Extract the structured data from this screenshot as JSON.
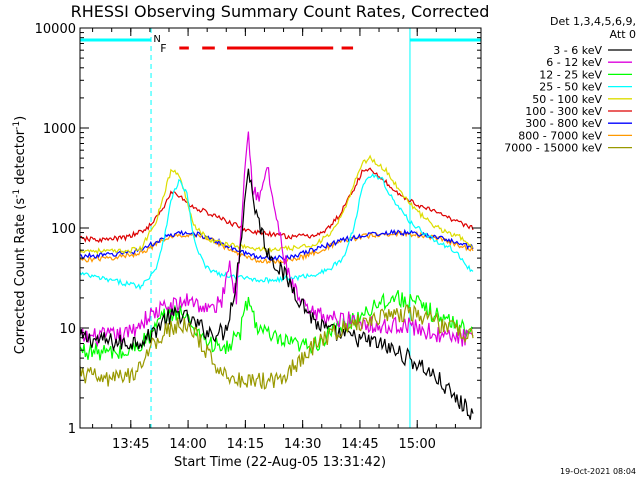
{
  "chart_data": {
    "type": "line",
    "title": "RHESSI Observing Summary Count Rates, Corrected",
    "xlabel": "Start Time (22-Aug-05 13:31:42)",
    "ylabel_main": "Corrected Count Rate (s",
    "ylabel_sup1": "-1",
    "ylabel_mid": " detector",
    "ylabel_sup2": "-1",
    "ylabel_end": ")",
    "yscale": "log",
    "ylim": [
      1,
      10000
    ],
    "xlim_minutes": [
      0,
      105
    ],
    "x_ticks": [
      {
        "label": "13:45",
        "m": 13.3
      },
      {
        "label": "14:00",
        "m": 28.3
      },
      {
        "label": "14:15",
        "m": 43.3
      },
      {
        "label": "14:30",
        "m": 58.3
      },
      {
        "label": "14:45",
        "m": 73.3
      },
      {
        "label": "15:00",
        "m": 88.3
      }
    ],
    "y_ticks": [
      {
        "label": "1",
        "v": 1
      },
      {
        "label": "10",
        "v": 10
      },
      {
        "label": "100",
        "v": 100
      },
      {
        "label": "1000",
        "v": 1000
      },
      {
        "label": "10000",
        "v": 10000
      }
    ],
    "legend_header": [
      "Det 1,3,4,5,6,9,",
      "Att 0"
    ],
    "footer_date": "19-Oct-2021 08:04",
    "annotations": {
      "N": "N",
      "F": "F"
    },
    "night_intervals": [
      [
        0,
        18.6
      ],
      [
        86.4,
        105
      ]
    ],
    "flare_segments": [
      [
        26,
        28.5
      ],
      [
        32,
        35.3
      ],
      [
        38.5,
        66.3
      ],
      [
        68.5,
        71.5
      ]
    ],
    "series": [
      {
        "name": "3 - 6 keV",
        "color": "#000000",
        "points": [
          [
            0,
            8
          ],
          [
            12,
            7
          ],
          [
            18,
            8
          ],
          [
            22,
            12
          ],
          [
            26,
            14
          ],
          [
            30,
            11
          ],
          [
            34,
            9
          ],
          [
            38,
            9
          ],
          [
            41,
            30
          ],
          [
            44,
            400
          ],
          [
            46,
            150
          ],
          [
            49,
            60
          ],
          [
            52,
            40
          ],
          [
            55,
            28
          ],
          [
            58,
            18
          ],
          [
            62,
            11
          ],
          [
            66,
            9
          ],
          [
            72,
            8
          ],
          [
            78,
            7
          ],
          [
            82,
            6
          ],
          [
            86,
            5
          ],
          [
            90,
            4
          ],
          [
            94,
            3
          ],
          [
            98,
            2
          ],
          [
            103,
            1.4
          ]
        ]
      },
      {
        "name": "6 - 12 keV",
        "color": "#dd00dd",
        "points": [
          [
            0,
            8
          ],
          [
            12,
            8.5
          ],
          [
            18,
            13
          ],
          [
            22,
            16
          ],
          [
            26,
            17
          ],
          [
            29,
            20
          ],
          [
            31,
            17
          ],
          [
            34,
            15
          ],
          [
            37,
            18
          ],
          [
            39,
            45
          ],
          [
            41,
            20
          ],
          [
            43,
            380
          ],
          [
            44,
            1000
          ],
          [
            45,
            300
          ],
          [
            47,
            180
          ],
          [
            49,
            420
          ],
          [
            51,
            150
          ],
          [
            53,
            60
          ],
          [
            55,
            30
          ],
          [
            57,
            20
          ],
          [
            60,
            14
          ],
          [
            64,
            13
          ],
          [
            68,
            12
          ],
          [
            72,
            12
          ],
          [
            76,
            11
          ],
          [
            80,
            10
          ],
          [
            84,
            11
          ],
          [
            88,
            10
          ],
          [
            92,
            9
          ],
          [
            96,
            8
          ],
          [
            100,
            8
          ],
          [
            103,
            8
          ]
        ]
      },
      {
        "name": "12 - 25 keV",
        "color": "#00ff00",
        "points": [
          [
            0,
            6
          ],
          [
            12,
            5.5
          ],
          [
            18,
            8
          ],
          [
            22,
            13
          ],
          [
            26,
            15
          ],
          [
            30,
            10
          ],
          [
            34,
            7
          ],
          [
            38,
            6
          ],
          [
            42,
            9
          ],
          [
            44,
            20
          ],
          [
            46,
            11
          ],
          [
            50,
            8
          ],
          [
            54,
            7
          ],
          [
            58,
            6.5
          ],
          [
            62,
            7
          ],
          [
            66,
            9
          ],
          [
            70,
            11
          ],
          [
            74,
            14
          ],
          [
            78,
            18
          ],
          [
            82,
            20
          ],
          [
            86,
            19
          ],
          [
            90,
            16
          ],
          [
            94,
            13
          ],
          [
            98,
            11
          ],
          [
            103,
            9
          ]
        ]
      },
      {
        "name": "25 - 50 keV",
        "color": "#00ffff",
        "points": [
          [
            0,
            35
          ],
          [
            6,
            31
          ],
          [
            12,
            28
          ],
          [
            16,
            26
          ],
          [
            20,
            40
          ],
          [
            22,
            80
          ],
          [
            24,
            200
          ],
          [
            26,
            300
          ],
          [
            28,
            220
          ],
          [
            30,
            70
          ],
          [
            33,
            40
          ],
          [
            37,
            34
          ],
          [
            41,
            32
          ],
          [
            45,
            31
          ],
          [
            49,
            30
          ],
          [
            53,
            31
          ],
          [
            57,
            32
          ],
          [
            61,
            34
          ],
          [
            65,
            38
          ],
          [
            69,
            50
          ],
          [
            72,
            110
          ],
          [
            74,
            280
          ],
          [
            76,
            340
          ],
          [
            79,
            310
          ],
          [
            82,
            190
          ],
          [
            86,
            120
          ],
          [
            90,
            90
          ],
          [
            94,
            70
          ],
          [
            98,
            60
          ],
          [
            103,
            35
          ]
        ]
      },
      {
        "name": "50 - 100 keV",
        "color": "#dddd00",
        "points": [
          [
            0,
            60
          ],
          [
            10,
            58
          ],
          [
            16,
            62
          ],
          [
            20,
            120
          ],
          [
            22,
            220
          ],
          [
            24,
            390
          ],
          [
            26,
            330
          ],
          [
            28,
            190
          ],
          [
            30,
            105
          ],
          [
            34,
            75
          ],
          [
            38,
            70
          ],
          [
            42,
            65
          ],
          [
            46,
            62
          ],
          [
            50,
            60
          ],
          [
            54,
            62
          ],
          [
            58,
            64
          ],
          [
            62,
            70
          ],
          [
            66,
            90
          ],
          [
            69,
            140
          ],
          [
            72,
            300
          ],
          [
            74,
            450
          ],
          [
            76,
            500
          ],
          [
            80,
            380
          ],
          [
            84,
            230
          ],
          [
            88,
            150
          ],
          [
            92,
            110
          ],
          [
            96,
            90
          ],
          [
            100,
            80
          ],
          [
            103,
            60
          ]
        ]
      },
      {
        "name": "100 - 300 keV",
        "color": "#dd0000",
        "points": [
          [
            0,
            78
          ],
          [
            6,
            76
          ],
          [
            12,
            80
          ],
          [
            17,
            95
          ],
          [
            21,
            140
          ],
          [
            24,
            230
          ],
          [
            26,
            210
          ],
          [
            29,
            165
          ],
          [
            32,
            150
          ],
          [
            36,
            128
          ],
          [
            40,
            110
          ],
          [
            44,
            95
          ],
          [
            48,
            88
          ],
          [
            52,
            84
          ],
          [
            56,
            82
          ],
          [
            60,
            83
          ],
          [
            64,
            90
          ],
          [
            68,
            135
          ],
          [
            72,
            260
          ],
          [
            74,
            370
          ],
          [
            76,
            380
          ],
          [
            79,
            320
          ],
          [
            82,
            240
          ],
          [
            86,
            190
          ],
          [
            90,
            160
          ],
          [
            94,
            140
          ],
          [
            98,
            120
          ],
          [
            103,
            100
          ]
        ]
      },
      {
        "name": "300 - 800 keV",
        "color": "#0000ff",
        "points": [
          [
            0,
            52
          ],
          [
            8,
            54
          ],
          [
            14,
            58
          ],
          [
            18,
            66
          ],
          [
            22,
            80
          ],
          [
            26,
            88
          ],
          [
            30,
            88
          ],
          [
            34,
            80
          ],
          [
            38,
            67
          ],
          [
            42,
            58
          ],
          [
            46,
            52
          ],
          [
            50,
            50
          ],
          [
            54,
            51
          ],
          [
            58,
            55
          ],
          [
            62,
            62
          ],
          [
            66,
            70
          ],
          [
            70,
            78
          ],
          [
            74,
            84
          ],
          [
            78,
            88
          ],
          [
            82,
            90
          ],
          [
            86,
            89
          ],
          [
            90,
            86
          ],
          [
            94,
            80
          ],
          [
            98,
            72
          ],
          [
            103,
            64
          ]
        ]
      },
      {
        "name": "800 - 7000 keV",
        "color": "#ff9900",
        "points": [
          [
            0,
            48
          ],
          [
            8,
            50
          ],
          [
            14,
            54
          ],
          [
            18,
            62
          ],
          [
            22,
            76
          ],
          [
            26,
            85
          ],
          [
            30,
            86
          ],
          [
            34,
            78
          ],
          [
            38,
            64
          ],
          [
            42,
            54
          ],
          [
            46,
            48
          ],
          [
            50,
            46
          ],
          [
            54,
            47
          ],
          [
            58,
            51
          ],
          [
            62,
            58
          ],
          [
            66,
            67
          ],
          [
            70,
            76
          ],
          [
            74,
            82
          ],
          [
            78,
            86
          ],
          [
            82,
            88
          ],
          [
            86,
            87
          ],
          [
            90,
            84
          ],
          [
            94,
            77
          ],
          [
            98,
            70
          ],
          [
            103,
            60
          ]
        ]
      },
      {
        "name": "7000 - 15000 keV",
        "color": "#999900",
        "points": [
          [
            0,
            3.5
          ],
          [
            8,
            3
          ],
          [
            14,
            3.5
          ],
          [
            18,
            6
          ],
          [
            22,
            9
          ],
          [
            26,
            11
          ],
          [
            30,
            9
          ],
          [
            34,
            5
          ],
          [
            38,
            3.5
          ],
          [
            42,
            3
          ],
          [
            46,
            3
          ],
          [
            50,
            3
          ],
          [
            54,
            3.5
          ],
          [
            58,
            5
          ],
          [
            62,
            7
          ],
          [
            66,
            9
          ],
          [
            70,
            10
          ],
          [
            74,
            11.5
          ],
          [
            78,
            13
          ],
          [
            82,
            14
          ],
          [
            86,
            14
          ],
          [
            90,
            13
          ],
          [
            94,
            11
          ],
          [
            98,
            10
          ],
          [
            103,
            8
          ]
        ]
      }
    ]
  }
}
